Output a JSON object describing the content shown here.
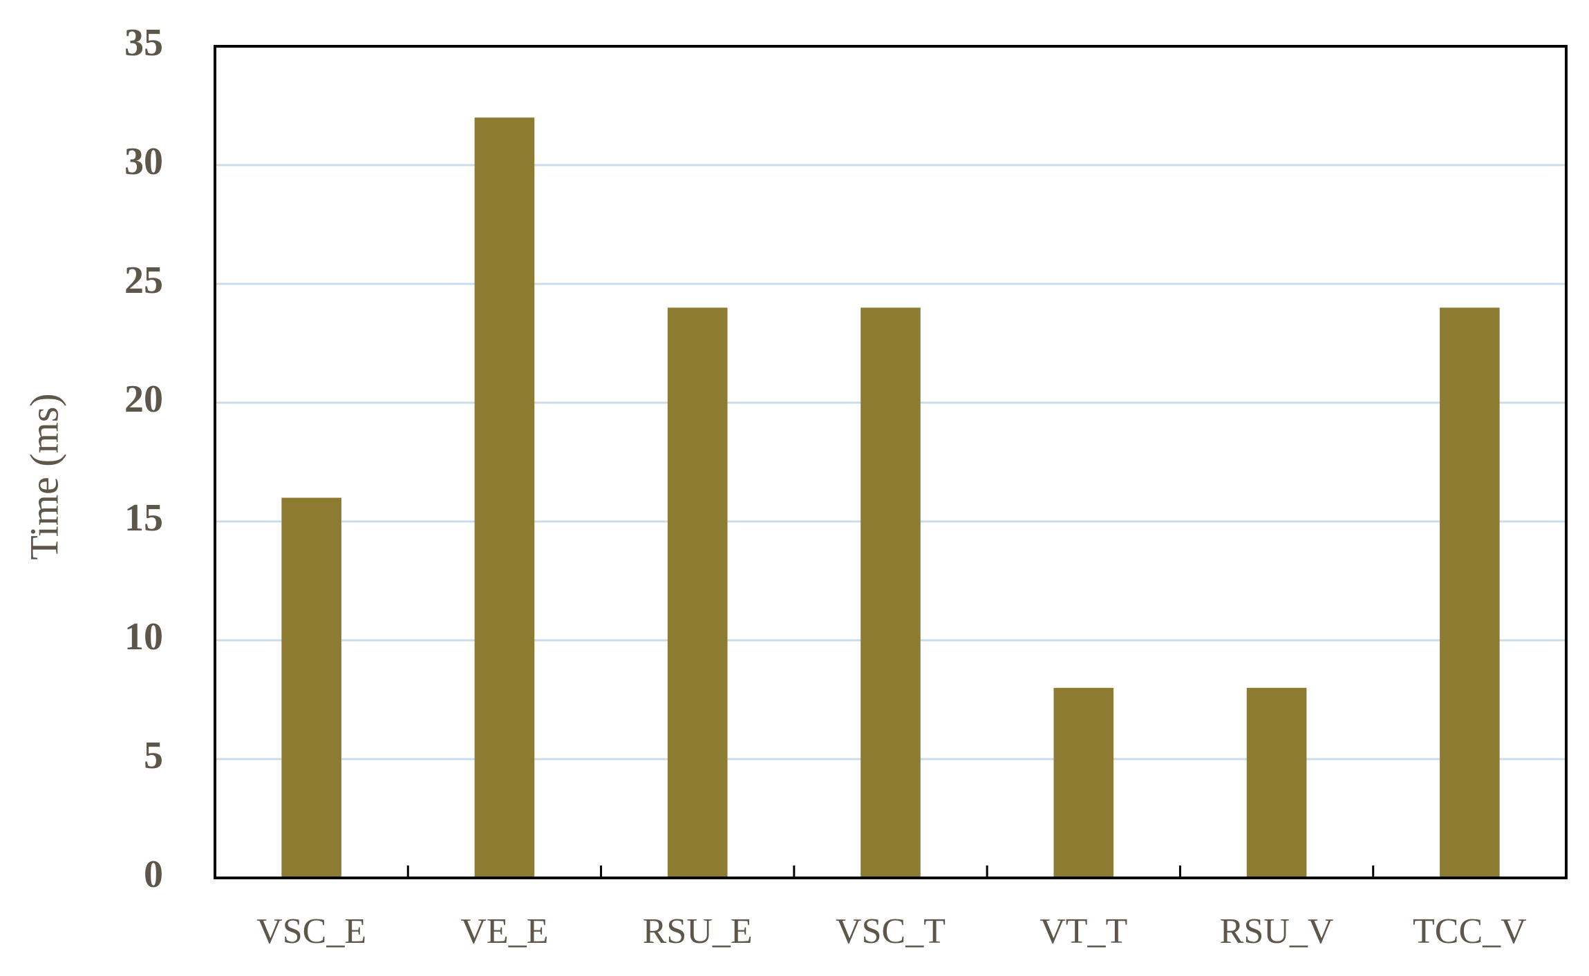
{
  "chart_data": {
    "type": "bar",
    "y_label": "Time (ms)",
    "categories": [
      "VSC_E",
      "VE_E",
      "RSU_E",
      "VSC_T",
      "VT_T",
      "RSU_V",
      "TCC_V"
    ],
    "values": [
      16,
      32,
      24,
      24,
      8,
      8,
      24
    ],
    "color": "#8c7b31",
    "ylim": [
      0,
      35
    ],
    "yticks": [
      0,
      5,
      10,
      15,
      20,
      25,
      30,
      35
    ],
    "grid": true
  }
}
